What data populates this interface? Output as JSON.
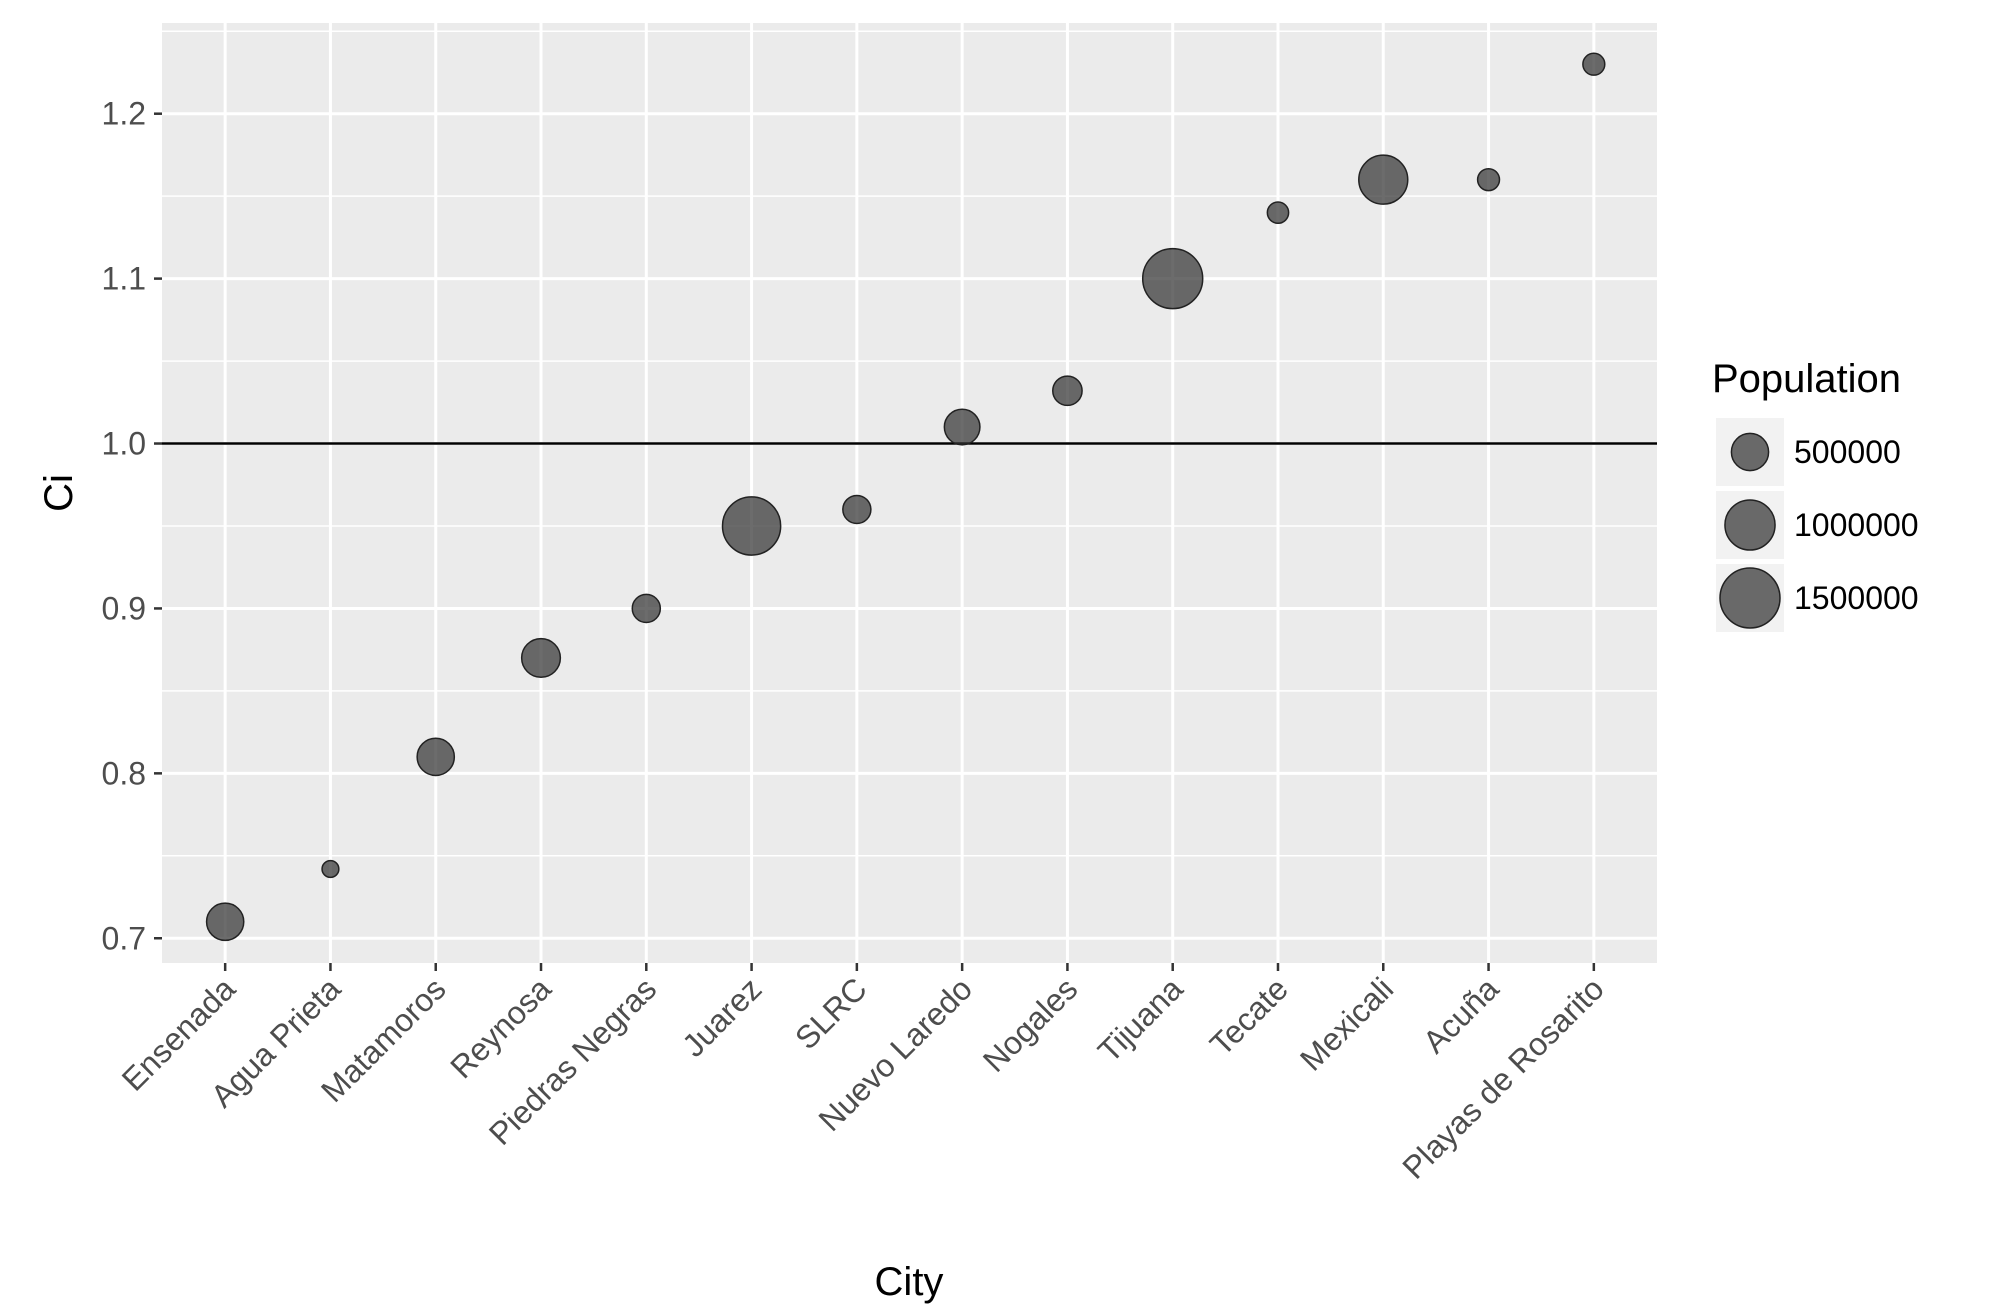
{
  "chart_data": {
    "type": "scatter",
    "title": "",
    "xlabel": "City",
    "ylabel": "Ci",
    "categories": [
      "Ensenada",
      "Agua Prieta",
      "Matamoros",
      "Reynosa",
      "Piedras Negras",
      "Juarez",
      "SLRC",
      "Nuevo Laredo",
      "Nogales",
      "Tijuana",
      "Tecate",
      "Mexicali",
      "Acuña",
      "Playas de Rosarito"
    ],
    "y": [
      0.71,
      0.742,
      0.81,
      0.87,
      0.9,
      0.95,
      0.96,
      1.01,
      1.032,
      1.1,
      1.14,
      1.16,
      1.16,
      1.23
    ],
    "size": [
      500000,
      60000,
      500000,
      550000,
      250000,
      1400000,
      250000,
      450000,
      280000,
      1500000,
      120000,
      950000,
      130000,
      130000
    ],
    "ylim": [
      0.685,
      1.255
    ],
    "yticks": [
      0.7,
      0.8,
      0.9,
      1.0,
      1.1,
      1.2
    ],
    "ytick_labels": [
      "0.7",
      "0.8",
      "0.9",
      "1.0",
      "1.1",
      "1.2"
    ],
    "hline": 1.0,
    "grid": true,
    "legend": {
      "title": "Population",
      "placement": "right",
      "entries": [
        {
          "label": "500000",
          "value": 500000
        },
        {
          "label": "1000000",
          "value": 1000000
        },
        {
          "label": "1500000",
          "value": 1500000
        }
      ]
    },
    "colors": {
      "panel": "#ebebeb",
      "grid": "#ffffff",
      "point": "#333333",
      "hline": "#000000",
      "axis_text": "#4d4d4d"
    }
  }
}
